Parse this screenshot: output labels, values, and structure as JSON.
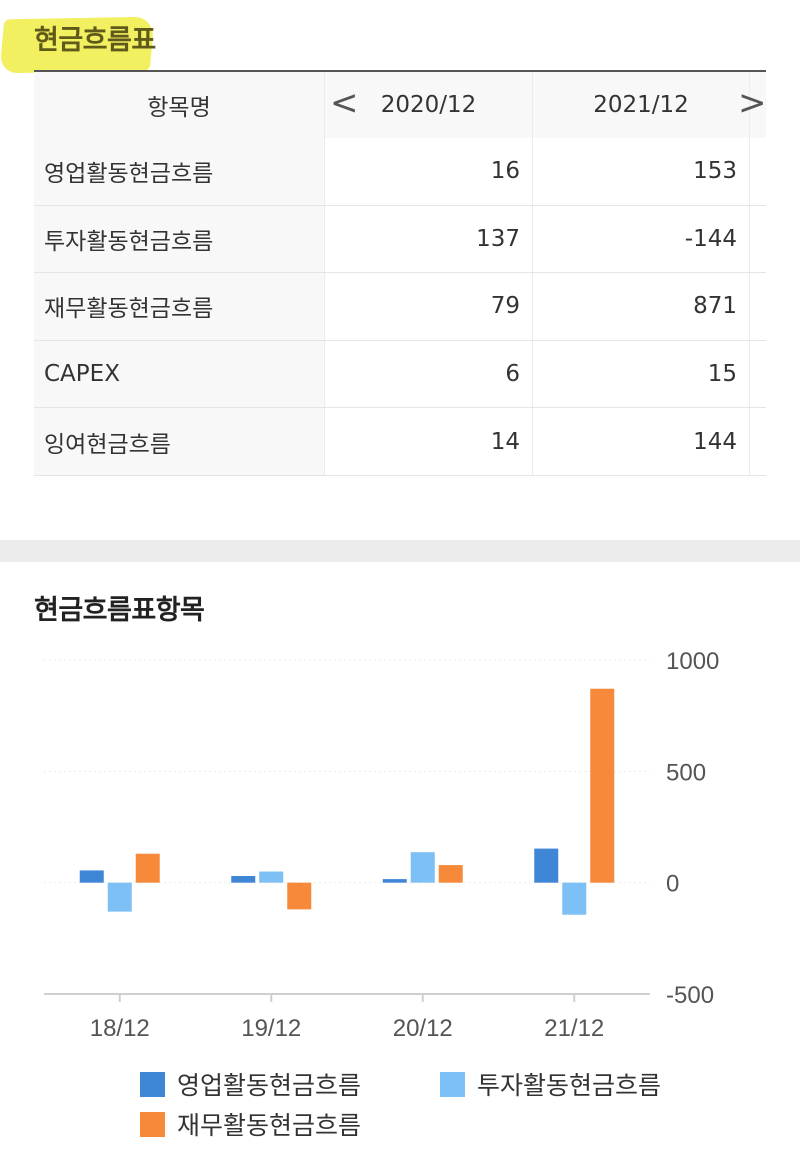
{
  "section1": {
    "title": "현금흐름표",
    "header": {
      "item": "항목명",
      "col1": "2020/12",
      "col2": "2021/12",
      "prev": "<",
      "next": ">"
    },
    "rows": [
      {
        "name": "영업활동현금흐름",
        "v1": "16",
        "v2": "153"
      },
      {
        "name": "투자활동현금흐름",
        "v1": "137",
        "v2": "-144"
      },
      {
        "name": "재무활동현금흐름",
        "v1": "79",
        "v2": "871"
      },
      {
        "name": "CAPEX",
        "v1": "6",
        "v2": "15"
      },
      {
        "name": "잉여현금흐름",
        "v1": "14",
        "v2": "144"
      }
    ],
    "highlight_color": "#f1ee57"
  },
  "section2": {
    "title": "현금흐름표항목"
  },
  "chart_data": {
    "type": "bar",
    "categories": [
      "18/12",
      "19/12",
      "20/12",
      "21/12"
    ],
    "series": [
      {
        "name": "영업활동현금흐름",
        "color": "#3f86d6",
        "values": [
          55,
          30,
          16,
          153
        ]
      },
      {
        "name": "투자활동현금흐름",
        "color": "#7cc0f5",
        "values": [
          -130,
          50,
          137,
          -144
        ]
      },
      {
        "name": "재무활동현금흐름",
        "color": "#f68a3a",
        "values": [
          130,
          -120,
          79,
          871
        ]
      }
    ],
    "ylim": [
      -500,
      1000
    ],
    "yticks": [
      "1000",
      "500",
      "0",
      "-500"
    ],
    "ytick_values": [
      1000,
      500,
      0,
      -500
    ],
    "y_axis_position": "right",
    "grid": true,
    "legend_position": "bottom"
  }
}
